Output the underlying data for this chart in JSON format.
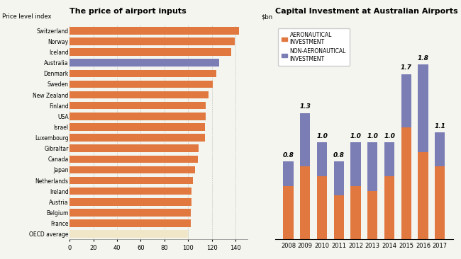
{
  "left_title": "The price of airport inputs",
  "left_subtitle": "Price level index",
  "left_countries": [
    "Switzerland",
    "Norway",
    "Iceland",
    "Australia",
    "Denmark",
    "Sweden",
    "New Zealand",
    "Finland",
    "USA",
    "Israel",
    "Luxembourg",
    "Gibraltar",
    "Canada",
    "Japan",
    "Netherlands",
    "Ireland",
    "Austria",
    "Belgium",
    "France",
    "OECD average"
  ],
  "left_values": [
    143,
    139,
    136,
    126,
    124,
    121,
    117,
    115,
    115,
    114,
    114,
    109,
    108,
    106,
    104,
    103,
    103,
    102,
    102,
    100
  ],
  "left_bar_colors": [
    "#E07840",
    "#E07840",
    "#E07840",
    "#7B7DB5",
    "#E07840",
    "#E07840",
    "#E07840",
    "#E07840",
    "#E07840",
    "#E07840",
    "#E07840",
    "#E07840",
    "#E07840",
    "#E07840",
    "#E07840",
    "#E07840",
    "#E07840",
    "#E07840",
    "#E07840",
    "#F0E6C8"
  ],
  "right_title": "Capital Investment at Australian Airports",
  "right_subtitle": "$bn",
  "years": [
    2008,
    2009,
    2010,
    2011,
    2012,
    2013,
    2014,
    2015,
    2016,
    2017
  ],
  "aero_values": [
    0.55,
    0.75,
    0.65,
    0.45,
    0.55,
    0.5,
    0.65,
    1.15,
    0.9,
    0.75
  ],
  "non_aero_values": [
    0.25,
    0.55,
    0.35,
    0.35,
    0.45,
    0.5,
    0.35,
    0.55,
    0.9,
    0.35
  ],
  "total_labels": [
    "0.8",
    "1.3",
    "1.0",
    "0.8",
    "1.0",
    "1.0",
    "1.0",
    "1.7",
    "1.8",
    "1.1"
  ],
  "aero_color": "#E07840",
  "non_aero_color": "#7B7DB5",
  "bar_width": 0.6,
  "legend_labels": [
    "AERONAUTICAL\nINVESTMENT",
    "NON-AERONAUTICAL\nINVESTMENT"
  ],
  "bg_color": "#F5F5F0"
}
